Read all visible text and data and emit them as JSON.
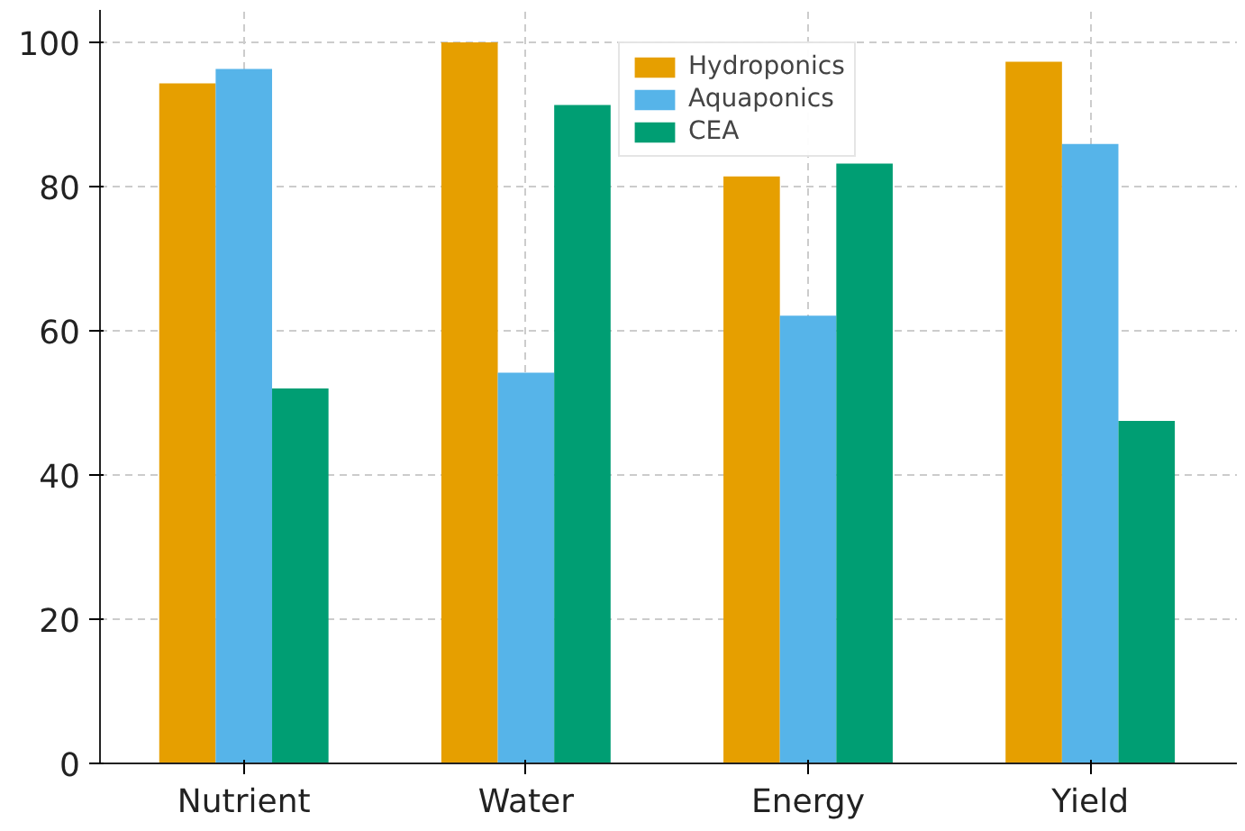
{
  "chart_data": {
    "type": "bar",
    "categories": [
      "Nutrient",
      "Water",
      "Energy",
      "Yield"
    ],
    "series": [
      {
        "name": "Hydroponics",
        "color": "#e69f00",
        "values": [
          94.3,
          100,
          81.4,
          97.3
        ]
      },
      {
        "name": "Aquaponics",
        "color": "#56b4e9",
        "values": [
          96.3,
          54.2,
          62.1,
          85.9
        ]
      },
      {
        "name": "CEA",
        "color": "#009e73",
        "values": [
          52.0,
          91.3,
          83.2,
          47.5
        ]
      }
    ],
    "ylim": [
      0,
      104.5
    ],
    "yticks": [
      0,
      20,
      40,
      60,
      80,
      100
    ],
    "grid": true,
    "legend": "top"
  }
}
